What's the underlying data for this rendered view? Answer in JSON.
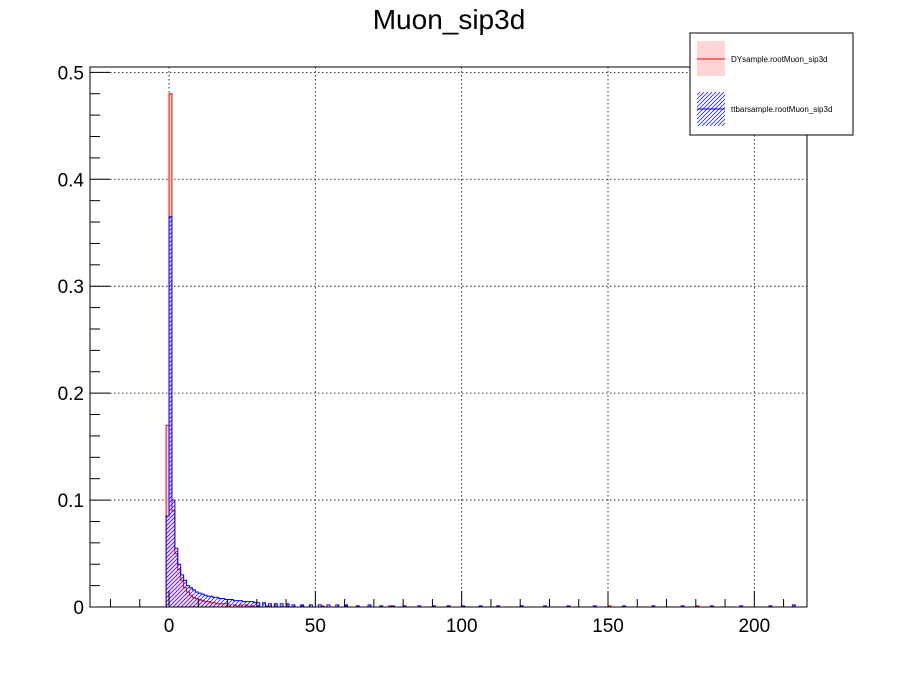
{
  "chart_data": {
    "type": "bar",
    "title": "Muon_sip3d",
    "xlabel": "",
    "ylabel": "",
    "xlim": [
      -27,
      218
    ],
    "ylim": [
      0,
      0.505
    ],
    "bin_width": 1,
    "grid": true,
    "legend_position": "top-right",
    "x_ticks": [
      0,
      50,
      100,
      150,
      200
    ],
    "y_ticks": [
      0,
      0.1,
      0.2,
      0.3,
      0.4,
      0.5
    ],
    "x_tick_labels": [
      "0",
      "50",
      "100",
      "150",
      "200"
    ],
    "y_tick_labels": [
      "0",
      "0.1",
      "0.2",
      "0.3",
      "0.4",
      "0.5"
    ],
    "series": [
      {
        "name": "DYsample.rootMuon_sip3d",
        "color": "#ff0000",
        "fill": "#ffcccc",
        "style": "solid-fill",
        "bins": [
          {
            "x": -1,
            "y": 0.17
          },
          {
            "x": 0,
            "y": 0.48
          },
          {
            "x": 1,
            "y": 0.09
          },
          {
            "x": 2,
            "y": 0.05
          },
          {
            "x": 3,
            "y": 0.035
          },
          {
            "x": 4,
            "y": 0.025
          },
          {
            "x": 5,
            "y": 0.018
          },
          {
            "x": 6,
            "y": 0.014
          },
          {
            "x": 7,
            "y": 0.011
          },
          {
            "x": 8,
            "y": 0.009
          },
          {
            "x": 9,
            "y": 0.008
          },
          {
            "x": 10,
            "y": 0.007
          },
          {
            "x": 11,
            "y": 0.006
          },
          {
            "x": 12,
            "y": 0.005
          },
          {
            "x": 13,
            "y": 0.005
          },
          {
            "x": 14,
            "y": 0.004
          },
          {
            "x": 15,
            "y": 0.004
          },
          {
            "x": 16,
            "y": 0.003
          },
          {
            "x": 17,
            "y": 0.003
          },
          {
            "x": 18,
            "y": 0.003
          },
          {
            "x": 19,
            "y": 0.003
          },
          {
            "x": 20,
            "y": 0.002
          },
          {
            "x": 22,
            "y": 0.002
          },
          {
            "x": 24,
            "y": 0.002
          },
          {
            "x": 26,
            "y": 0.002
          },
          {
            "x": 28,
            "y": 0.001
          },
          {
            "x": 30,
            "y": 0.001
          },
          {
            "x": 33,
            "y": 0.001
          },
          {
            "x": 36,
            "y": 0.001
          },
          {
            "x": 40,
            "y": 0.001
          },
          {
            "x": 45,
            "y": 0.001
          },
          {
            "x": 52,
            "y": 0.001
          },
          {
            "x": 60,
            "y": 0.001
          },
          {
            "x": 75,
            "y": 0.001
          },
          {
            "x": 95,
            "y": 0.001
          },
          {
            "x": 120,
            "y": 0.001
          },
          {
            "x": 150,
            "y": 0.001
          },
          {
            "x": 180,
            "y": 0.001
          }
        ]
      },
      {
        "name": "ttbarsample.rootMuon_sip3d",
        "color": "#0000ff",
        "fill": "#0000ff",
        "style": "hatched",
        "bins": [
          {
            "x": -1,
            "y": 0.085
          },
          {
            "x": 0,
            "y": 0.365
          },
          {
            "x": 1,
            "y": 0.1
          },
          {
            "x": 2,
            "y": 0.055
          },
          {
            "x": 3,
            "y": 0.04
          },
          {
            "x": 4,
            "y": 0.03
          },
          {
            "x": 5,
            "y": 0.025
          },
          {
            "x": 6,
            "y": 0.02
          },
          {
            "x": 7,
            "y": 0.018
          },
          {
            "x": 8,
            "y": 0.016
          },
          {
            "x": 9,
            "y": 0.014
          },
          {
            "x": 10,
            "y": 0.013
          },
          {
            "x": 11,
            "y": 0.012
          },
          {
            "x": 12,
            "y": 0.011
          },
          {
            "x": 13,
            "y": 0.01
          },
          {
            "x": 14,
            "y": 0.01
          },
          {
            "x": 15,
            "y": 0.009
          },
          {
            "x": 16,
            "y": 0.009
          },
          {
            "x": 17,
            "y": 0.008
          },
          {
            "x": 18,
            "y": 0.008
          },
          {
            "x": 19,
            "y": 0.007
          },
          {
            "x": 20,
            "y": 0.007
          },
          {
            "x": 21,
            "y": 0.007
          },
          {
            "x": 22,
            "y": 0.006
          },
          {
            "x": 23,
            "y": 0.006
          },
          {
            "x": 24,
            "y": 0.006
          },
          {
            "x": 25,
            "y": 0.005
          },
          {
            "x": 26,
            "y": 0.005
          },
          {
            "x": 27,
            "y": 0.005
          },
          {
            "x": 28,
            "y": 0.005
          },
          {
            "x": 29,
            "y": 0.004
          },
          {
            "x": 30,
            "y": 0.004
          },
          {
            "x": 32,
            "y": 0.004
          },
          {
            "x": 34,
            "y": 0.003
          },
          {
            "x": 36,
            "y": 0.003
          },
          {
            "x": 38,
            "y": 0.003
          },
          {
            "x": 40,
            "y": 0.003
          },
          {
            "x": 42,
            "y": 0.002
          },
          {
            "x": 45,
            "y": 0.002
          },
          {
            "x": 48,
            "y": 0.002
          },
          {
            "x": 51,
            "y": 0.002
          },
          {
            "x": 54,
            "y": 0.002
          },
          {
            "x": 57,
            "y": 0.002
          },
          {
            "x": 60,
            "y": 0.002
          },
          {
            "x": 64,
            "y": 0.001
          },
          {
            "x": 68,
            "y": 0.002
          },
          {
            "x": 72,
            "y": 0.001
          },
          {
            "x": 76,
            "y": 0.001
          },
          {
            "x": 80,
            "y": 0.001
          },
          {
            "x": 85,
            "y": 0.001
          },
          {
            "x": 90,
            "y": 0.001
          },
          {
            "x": 95,
            "y": 0.001
          },
          {
            "x": 100,
            "y": 0.001
          },
          {
            "x": 106,
            "y": 0.001
          },
          {
            "x": 112,
            "y": 0.001
          },
          {
            "x": 120,
            "y": 0.001
          },
          {
            "x": 128,
            "y": 0.001
          },
          {
            "x": 136,
            "y": 0.001
          },
          {
            "x": 145,
            "y": 0.001
          },
          {
            "x": 155,
            "y": 0.001
          },
          {
            "x": 165,
            "y": 0.001
          },
          {
            "x": 175,
            "y": 0.001
          },
          {
            "x": 185,
            "y": 0.001
          },
          {
            "x": 195,
            "y": 0.001
          },
          {
            "x": 205,
            "y": 0.001
          },
          {
            "x": 213,
            "y": 0.002
          }
        ]
      }
    ]
  }
}
